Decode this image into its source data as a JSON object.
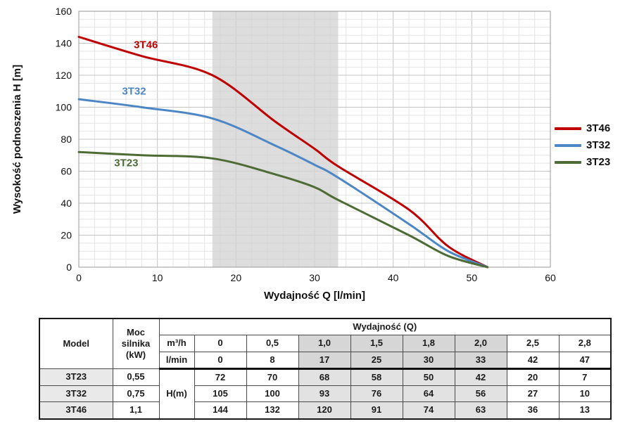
{
  "chart_data": {
    "type": "line",
    "title": "",
    "xlabel": "Wydajność Q [l/min]",
    "ylabel": "Wysokość podnoszenia H [m]",
    "xlim": [
      0,
      60
    ],
    "ylim": [
      0,
      160
    ],
    "xticks": [
      0,
      10,
      20,
      30,
      40,
      50,
      60
    ],
    "yticks": [
      0,
      20,
      40,
      60,
      80,
      100,
      120,
      140,
      160
    ],
    "grid": true,
    "shaded_band_x": [
      17,
      33
    ],
    "band_color": "#d2d2d2",
    "legend_position": "right",
    "x": [
      0,
      8,
      17,
      25,
      30,
      33,
      42,
      47,
      52
    ],
    "series": [
      {
        "name": "3T46",
        "color": "#bf0000",
        "values": [
          144,
          132,
          120,
          91,
          74,
          63,
          36,
          13,
          0
        ],
        "label_x": 7,
        "label_y": 137
      },
      {
        "name": "3T32",
        "color": "#4d86c4",
        "values": [
          105,
          100,
          93,
          76,
          64,
          56,
          27,
          10,
          0
        ],
        "label_x": 5.5,
        "label_y": 108
      },
      {
        "name": "3T23",
        "color": "#4d6b35",
        "values": [
          72,
          70,
          68,
          58,
          50,
          42,
          20,
          7,
          0
        ],
        "label_x": 4.5,
        "label_y": 63
      }
    ]
  },
  "table": {
    "header": {
      "model": "Model",
      "power": "Moc silnika (kW)",
      "flow_group": "Wydajność (Q)",
      "unit_m3h": "m³/h",
      "unit_lmin": "l/min",
      "h_label": "H(m)",
      "m3h_values": [
        "0",
        "0,5",
        "1,0",
        "1,5",
        "1,8",
        "2,0",
        "2,5",
        "2,8"
      ],
      "lmin_values": [
        "0",
        "8",
        "17",
        "25",
        "30",
        "33",
        "42",
        "47"
      ]
    },
    "shaded_value_columns": [
      2,
      3,
      4,
      5
    ],
    "rows": [
      {
        "model": "3T23",
        "power": "0,55",
        "h": [
          "72",
          "70",
          "68",
          "58",
          "50",
          "42",
          "20",
          "7"
        ]
      },
      {
        "model": "3T32",
        "power": "0,75",
        "h": [
          "105",
          "100",
          "93",
          "76",
          "64",
          "56",
          "27",
          "10"
        ]
      },
      {
        "model": "3T46",
        "power": "1,1",
        "h": [
          "144",
          "132",
          "120",
          "91",
          "74",
          "63",
          "36",
          "13"
        ]
      }
    ]
  }
}
